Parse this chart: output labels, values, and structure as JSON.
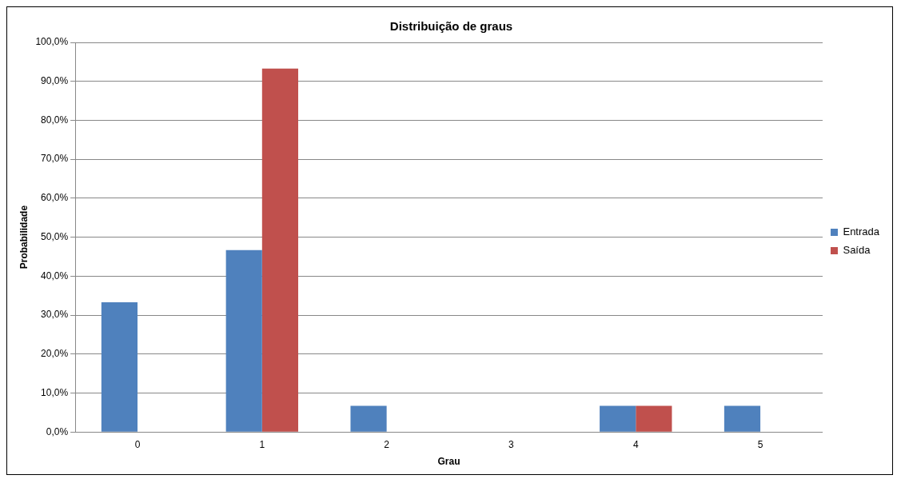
{
  "chart_data": {
    "type": "bar",
    "title": "Distribuição de graus",
    "xlabel": "Grau",
    "ylabel": "Probabilidade",
    "categories": [
      "0",
      "1",
      "2",
      "3",
      "4",
      "5"
    ],
    "series": [
      {
        "name": "Entrada",
        "color": "#4f81bd",
        "values": [
          33.3,
          46.7,
          6.7,
          0,
          6.7,
          6.7
        ]
      },
      {
        "name": "Saída",
        "color": "#c0504d",
        "values": [
          0,
          93.3,
          0,
          0,
          6.7,
          0
        ]
      }
    ],
    "ylim": [
      0,
      100
    ],
    "yticks": [
      {
        "value": 0,
        "label": "0,0%"
      },
      {
        "value": 10,
        "label": "10,0%"
      },
      {
        "value": 20,
        "label": "20,0%"
      },
      {
        "value": 30,
        "label": "30,0%"
      },
      {
        "value": 40,
        "label": "40,0%"
      },
      {
        "value": 50,
        "label": "50,0%"
      },
      {
        "value": 60,
        "label": "60,0%"
      },
      {
        "value": 70,
        "label": "70,0%"
      },
      {
        "value": 80,
        "label": "80,0%"
      },
      {
        "value": 90,
        "label": "90,0%"
      },
      {
        "value": 100,
        "label": "100,0%"
      }
    ],
    "grid": "y",
    "legend": "right"
  }
}
